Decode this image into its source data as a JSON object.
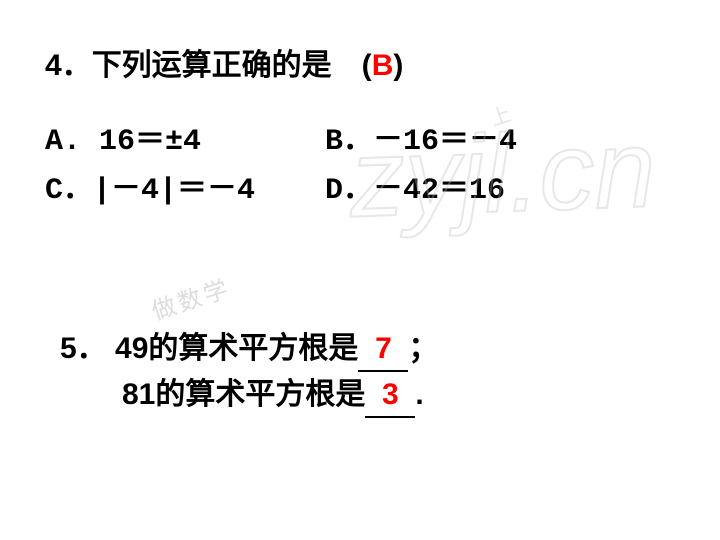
{
  "question4": {
    "number": "4．",
    "stem": "下列运算正确的是　(",
    "answer": "B",
    "stemClose": ")",
    "options": {
      "A": "A. 16＝±4",
      "B": "B．－16＝－4",
      "C": "C．|－4|＝－4",
      "D": "D．－42＝16"
    }
  },
  "question5": {
    "number": "5．",
    "line1_pre": "49的算术平方根是",
    "line1_ans": "7",
    "line1_post": "；",
    "line2_pre": "81的算术平方根是",
    "line2_ans": "3",
    "line2_post": "."
  },
  "watermark": {
    "main": "zyjl.cn",
    "small1": "做数学",
    "small2": "上"
  },
  "colors": {
    "answer": "#ff0000",
    "text": "#000000",
    "background": "#ffffff",
    "watermark": "#cccccc"
  }
}
